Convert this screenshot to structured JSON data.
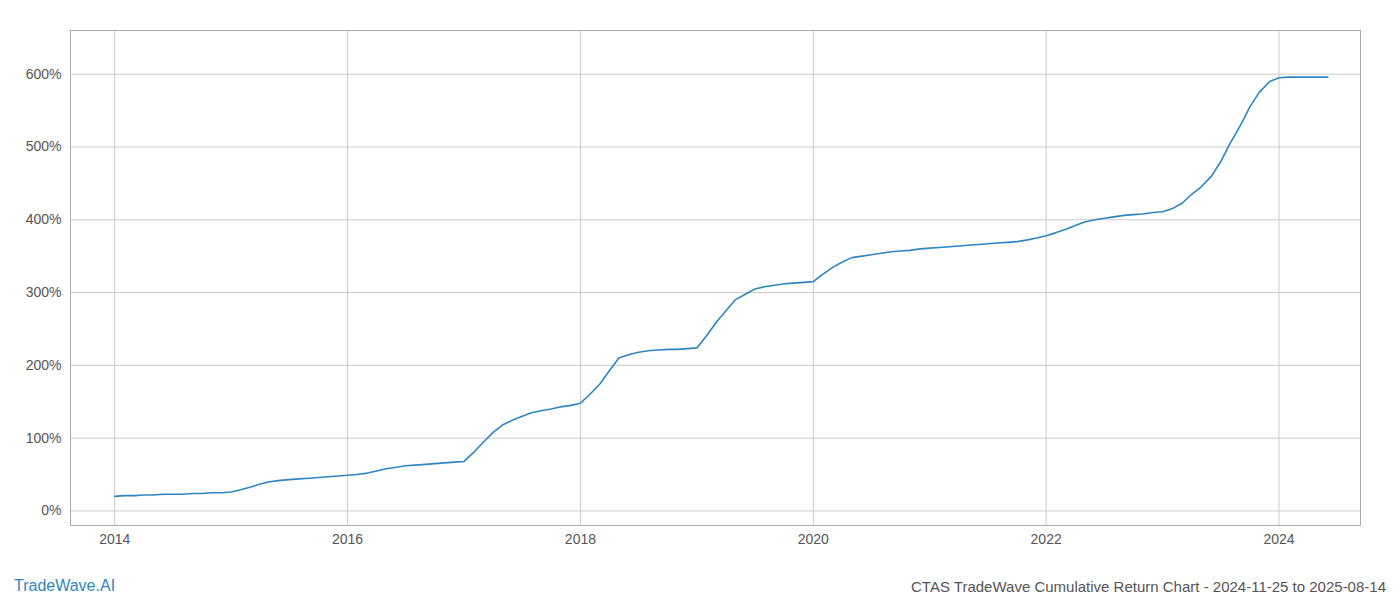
{
  "chart_data": {
    "type": "line",
    "title": "CTAS TradeWave Cumulative Return Chart - 2024-11-25 to 2025-08-14",
    "annotations": [
      "TradeWave.AI"
    ],
    "color": "#2e86c1",
    "x": [
      2014.0,
      2014.08,
      2014.17,
      2014.25,
      2014.33,
      2014.42,
      2014.5,
      2014.58,
      2014.67,
      2014.75,
      2014.83,
      2014.92,
      2015.0,
      2015.08,
      2015.17,
      2015.25,
      2015.33,
      2015.42,
      2015.5,
      2015.58,
      2015.67,
      2015.75,
      2015.83,
      2015.92,
      2016.0,
      2016.08,
      2016.17,
      2016.25,
      2016.33,
      2016.42,
      2016.5,
      2016.58,
      2016.67,
      2016.75,
      2016.83,
      2016.92,
      2017.0,
      2017.08,
      2017.17,
      2017.25,
      2017.33,
      2017.42,
      2017.5,
      2017.58,
      2017.67,
      2017.75,
      2017.83,
      2017.92,
      2018.0,
      2018.08,
      2018.17,
      2018.25,
      2018.33,
      2018.42,
      2018.5,
      2018.58,
      2018.67,
      2018.75,
      2018.83,
      2018.92,
      2019.0,
      2019.08,
      2019.17,
      2019.25,
      2019.33,
      2019.42,
      2019.5,
      2019.58,
      2019.67,
      2019.75,
      2019.83,
      2019.92,
      2020.0,
      2020.08,
      2020.17,
      2020.25,
      2020.33,
      2020.42,
      2020.5,
      2020.58,
      2020.67,
      2020.75,
      2020.83,
      2020.92,
      2021.0,
      2021.08,
      2021.17,
      2021.25,
      2021.33,
      2021.42,
      2021.5,
      2021.58,
      2021.67,
      2021.75,
      2021.83,
      2021.92,
      2022.0,
      2022.08,
      2022.17,
      2022.25,
      2022.33,
      2022.42,
      2022.5,
      2022.58,
      2022.67,
      2022.75,
      2022.83,
      2022.92,
      2023.0,
      2023.08,
      2023.17,
      2023.25,
      2023.33,
      2023.42,
      2023.5,
      2023.58,
      2023.67,
      2023.75,
      2023.83,
      2023.92,
      2024.0,
      2024.08,
      2024.17,
      2024.25,
      2024.33,
      2024.42
    ],
    "values": [
      20,
      21,
      21,
      22,
      22,
      23,
      23,
      23,
      24,
      24,
      25,
      25,
      26,
      29,
      33,
      37,
      40,
      42,
      43,
      44,
      45,
      46,
      47,
      48,
      49,
      50,
      52,
      55,
      58,
      60,
      62,
      63,
      64,
      65,
      66,
      67,
      68,
      80,
      95,
      108,
      118,
      125,
      130,
      135,
      138,
      140,
      143,
      145,
      148,
      160,
      175,
      193,
      210,
      215,
      218,
      220,
      221,
      222,
      222,
      223,
      224,
      240,
      260,
      275,
      290,
      298,
      305,
      308,
      310,
      312,
      313,
      314,
      315,
      325,
      335,
      342,
      348,
      350,
      352,
      354,
      356,
      357,
      358,
      360,
      361,
      362,
      363,
      364,
      365,
      366,
      367,
      368,
      369,
      370,
      372,
      375,
      378,
      382,
      387,
      392,
      397,
      400,
      402,
      404,
      406,
      407,
      408,
      410,
      411,
      415,
      423,
      435,
      445,
      460,
      480,
      505,
      530,
      555,
      575,
      590,
      595,
      596,
      596,
      596,
      596,
      596
    ],
    "xlim": [
      2013.62,
      2024.7
    ],
    "ylim": [
      -20,
      660
    ],
    "xticks": [
      2014,
      2016,
      2018,
      2020,
      2022,
      2024
    ],
    "yticks": [
      {
        "value": 0,
        "label": "0%"
      },
      {
        "value": 100,
        "label": "100%"
      },
      {
        "value": 200,
        "label": "200%"
      },
      {
        "value": 300,
        "label": "300%"
      },
      {
        "value": 400,
        "label": "400%"
      },
      {
        "value": 500,
        "label": "500%"
      },
      {
        "value": 600,
        "label": "600%"
      }
    ],
    "grid": true
  }
}
